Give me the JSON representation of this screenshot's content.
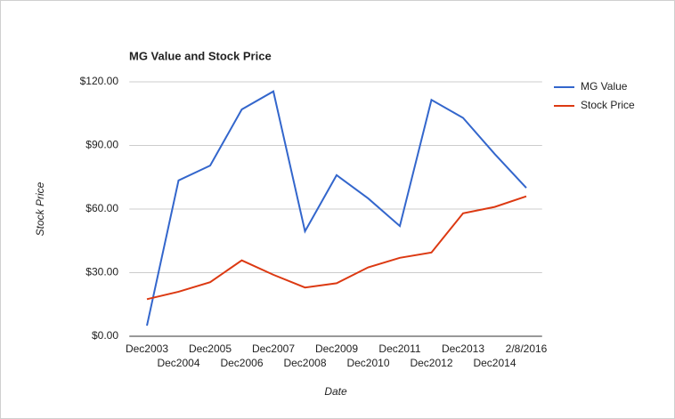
{
  "chart_data": {
    "type": "line",
    "title": "MG Value and Stock Price",
    "x_label": "Date",
    "y_label": "Stock Price",
    "categories": [
      "Dec2003",
      "Dec2004",
      "Dec2005",
      "Dec2006",
      "Dec2007",
      "Dec2008",
      "Dec2009",
      "Dec2010",
      "Dec2011",
      "Dec2012",
      "Dec2013",
      "Dec2014",
      "2/8/2016"
    ],
    "series": [
      {
        "name": "MG Value",
        "color": "#3366cc",
        "values": [
          5,
          73.5,
          80.5,
          107,
          115.5,
          49.5,
          76,
          65,
          52,
          111.5,
          103,
          86,
          70
        ]
      },
      {
        "name": "Stock Price",
        "color": "#dc3912",
        "values": [
          17.5,
          21,
          25.5,
          35.8,
          29,
          23,
          25,
          32.5,
          37,
          39.5,
          58,
          61,
          66
        ]
      }
    ],
    "ylim": [
      0,
      120
    ],
    "yticks": [
      {
        "value": 0,
        "label": "$0.00"
      },
      {
        "value": 30,
        "label": "$30.00"
      },
      {
        "value": 60,
        "label": "$60.00"
      },
      {
        "value": 90,
        "label": "$90.00"
      },
      {
        "value": 120,
        "label": "$120.00"
      }
    ],
    "grid": true,
    "legend": "right"
  }
}
